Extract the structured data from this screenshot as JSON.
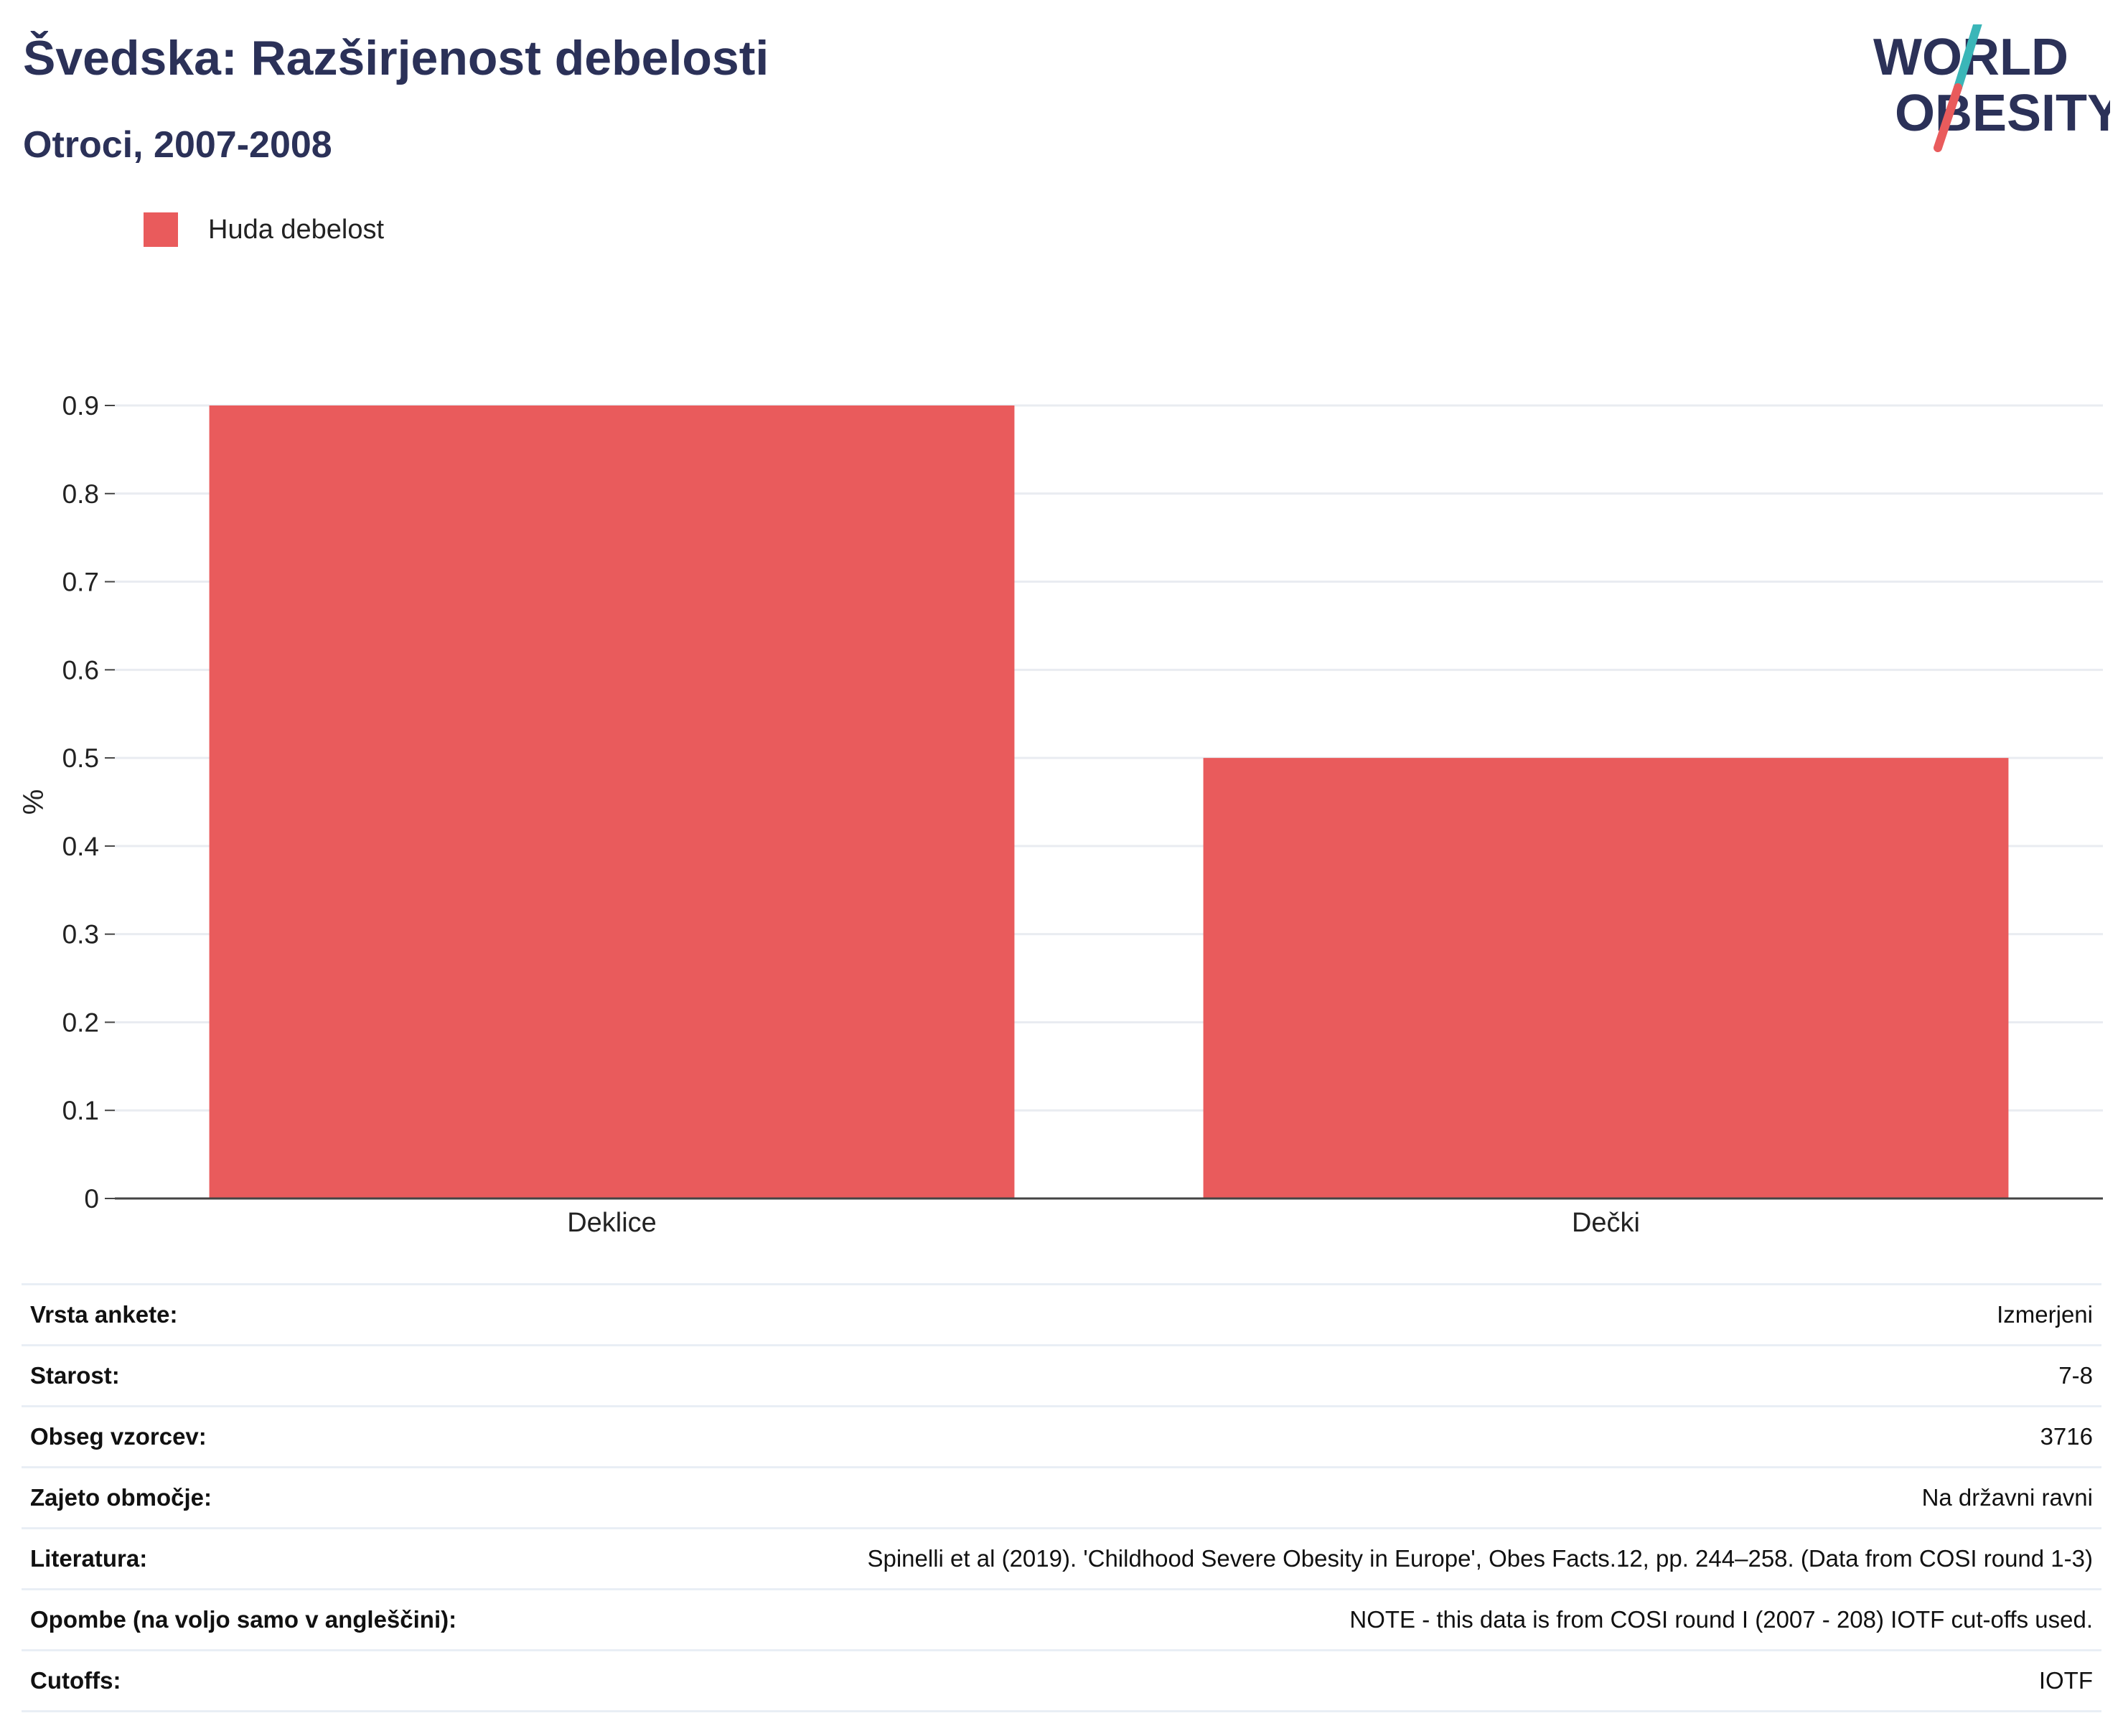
{
  "header": {
    "title": "Švedska: Razširjenost debelosti",
    "subtitle": "Otroci, 2007-2008"
  },
  "logo": {
    "line1": "WORLD",
    "line2": "OBESITY",
    "text_color": "#2b3158",
    "slash_colors": [
      "#3bb6b8",
      "#e95b5c"
    ]
  },
  "legend": {
    "items": [
      {
        "label": "Huda debelost",
        "color": "#e95b5c"
      }
    ]
  },
  "chart_data": {
    "type": "bar",
    "categories": [
      "Deklice",
      "Dečki"
    ],
    "series": [
      {
        "name": "Huda debelost",
        "values": [
          0.9,
          0.5
        ],
        "color": "#e95b5c"
      }
    ],
    "ylabel": "%",
    "xlabel": "",
    "ylim": [
      0,
      0.9
    ],
    "yticks": [
      "0",
      "0.1",
      "0.2",
      "0.3",
      "0.4",
      "0.5",
      "0.6",
      "0.7",
      "0.8",
      "0.9"
    ],
    "grid": true,
    "legend_position": "top-left"
  },
  "info": [
    {
      "label": "Vrsta ankete:",
      "value": "Izmerjeni"
    },
    {
      "label": "Starost:",
      "value": "7-8"
    },
    {
      "label": "Obseg vzorcev:",
      "value": "3716"
    },
    {
      "label": "Zajeto območje:",
      "value": "Na državni ravni"
    },
    {
      "label": "Literatura:",
      "value": "Spinelli et al (2019). 'Childhood Severe Obesity in Europe', Obes Facts.12, pp. 244–258. (Data from COSI round 1-3)"
    },
    {
      "label": "Opombe (na voljo samo v angleščini):",
      "value": "NOTE - this data is from COSI round I (2007 - 208) IOTF cut-offs used."
    },
    {
      "label": "Cutoffs:",
      "value": "IOTF"
    }
  ]
}
